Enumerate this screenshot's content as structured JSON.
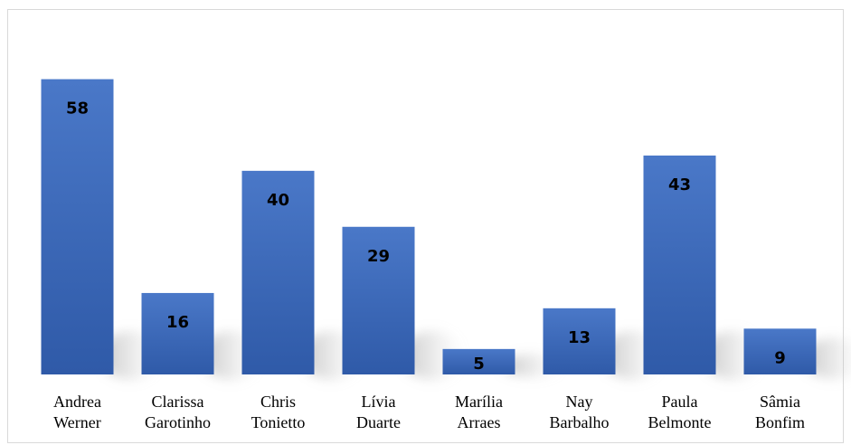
{
  "chart_data": {
    "type": "bar",
    "categories": [
      [
        "Andrea",
        "Werner"
      ],
      [
        "Clarissa",
        "Garotinho"
      ],
      [
        "Chris",
        "Tonietto"
      ],
      [
        "Lívia",
        "Duarte"
      ],
      [
        "Marília",
        "Arraes"
      ],
      [
        "Nay",
        "Barbalho"
      ],
      [
        "Paula",
        "Belmonte"
      ],
      [
        "Sâmia",
        "Bonfim"
      ]
    ],
    "values": [
      58,
      16,
      40,
      29,
      5,
      13,
      43,
      9
    ],
    "title": "",
    "xlabel": "",
    "ylabel": "",
    "ylim": [
      0,
      70
    ],
    "grid": false,
    "legend": "none",
    "bar_color_top": "#4472c4",
    "bar_color_bottom": "#2f5597",
    "data_labels": true
  }
}
